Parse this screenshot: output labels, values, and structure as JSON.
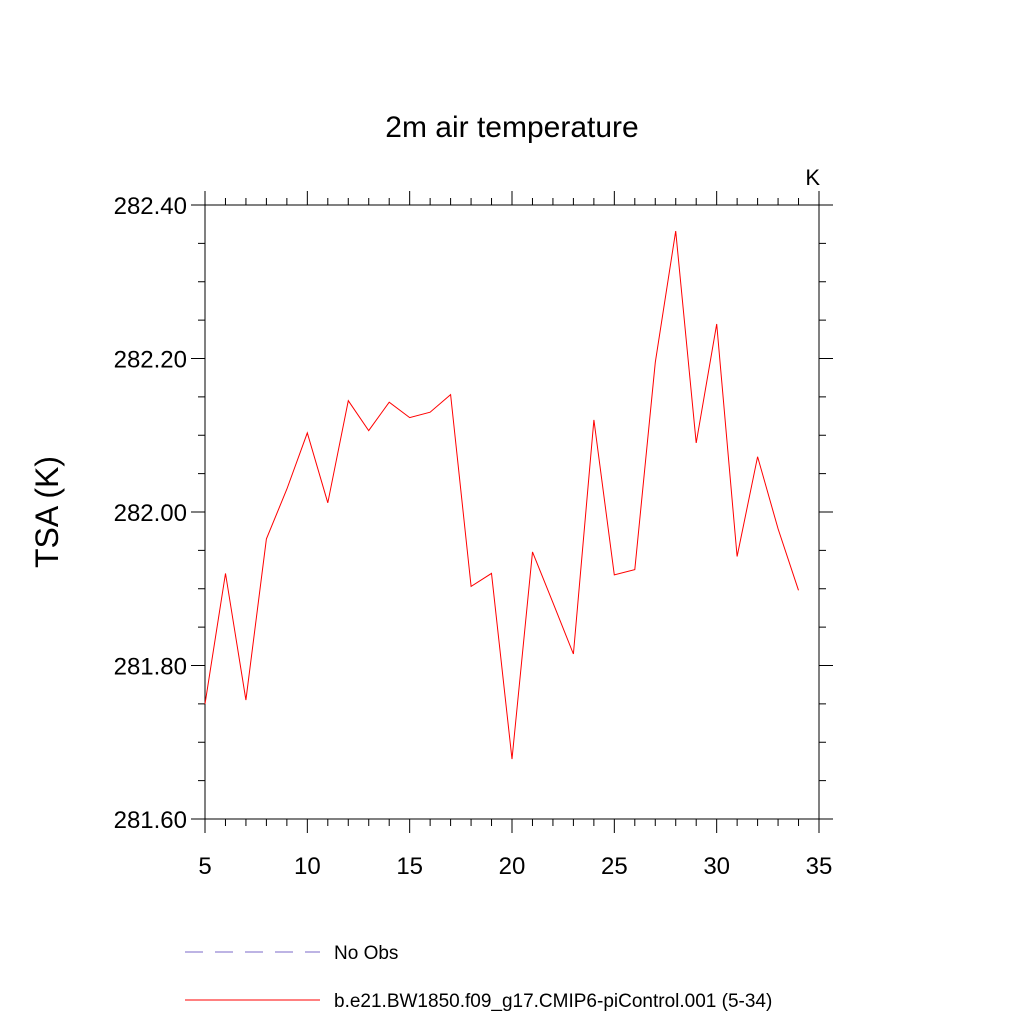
{
  "chart_data": {
    "type": "line",
    "title": "2m air temperature",
    "units_label": "K",
    "xlabel": "",
    "ylabel": "TSA  (K)",
    "xlim": [
      5,
      35
    ],
    "ylim": [
      281.6,
      282.4
    ],
    "x_ticks": [
      5,
      10,
      15,
      20,
      25,
      30,
      35
    ],
    "x_tick_labels": [
      "5",
      "10",
      "15",
      "20",
      "25",
      "30",
      "35"
    ],
    "y_ticks": [
      281.6,
      281.8,
      282.0,
      282.2,
      282.4
    ],
    "y_tick_labels": [
      "281.60",
      "281.80",
      "282.00",
      "282.20",
      "282.40"
    ],
    "y_minor_step": 0.05,
    "x_minor_step": 1,
    "grid": false,
    "legend_placement": "bottom",
    "series": [
      {
        "name": "No Obs",
        "style": "dashed",
        "color": "#7b68c9",
        "x": [],
        "y": []
      },
      {
        "name": "b.e21.BW1850.f09_g17.CMIP6-piControl.001 (5-34)",
        "style": "solid",
        "color": "#ff0000",
        "x": [
          5,
          6,
          7,
          8,
          9,
          10,
          11,
          12,
          13,
          14,
          15,
          16,
          17,
          18,
          19,
          20,
          21,
          22,
          23,
          24,
          25,
          26,
          27,
          28,
          29,
          30,
          31,
          32,
          33,
          34
        ],
        "y": [
          281.75,
          281.92,
          281.755,
          281.965,
          282.03,
          282.103,
          282.012,
          282.145,
          282.106,
          282.143,
          282.123,
          282.13,
          282.153,
          281.903,
          281.92,
          281.678,
          281.948,
          281.882,
          281.815,
          282.12,
          281.918,
          281.925,
          282.195,
          282.366,
          282.09,
          282.245,
          281.942,
          282.072,
          281.978,
          281.898
        ]
      }
    ]
  }
}
